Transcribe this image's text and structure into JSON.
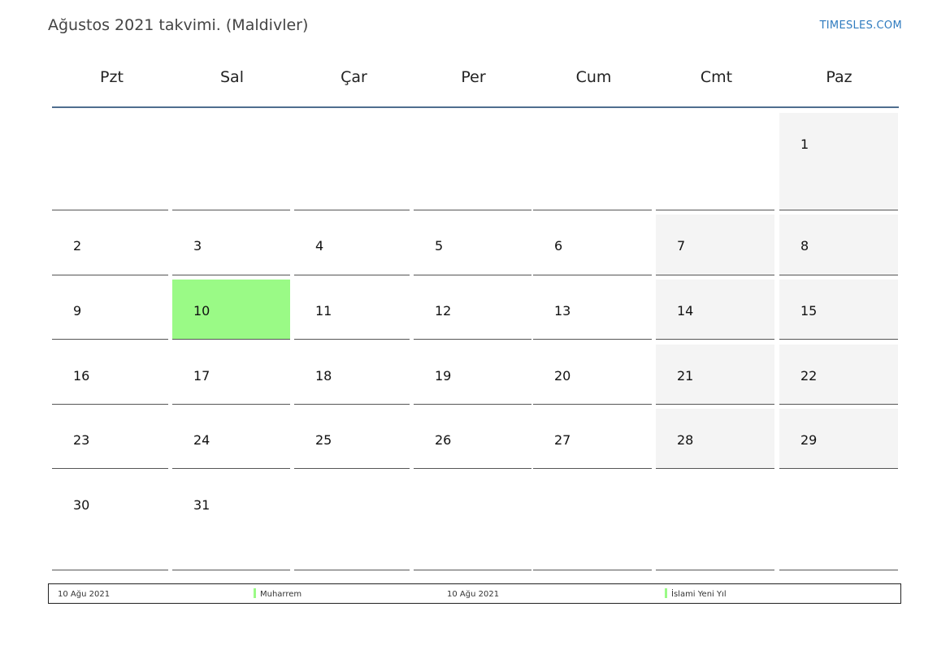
{
  "header": {
    "title": "Ağustos 2021 takvimi. (Maldivler)",
    "brand": "TIMESLES.COM"
  },
  "weekdays": [
    "Pzt",
    "Sal",
    "Çar",
    "Per",
    "Cum",
    "Cmt",
    "Paz"
  ],
  "weeks": [
    [
      "",
      "",
      "",
      "",
      "",
      "",
      "1"
    ],
    [
      "2",
      "3",
      "4",
      "5",
      "6",
      "7",
      "8"
    ],
    [
      "9",
      "10",
      "11",
      "12",
      "13",
      "14",
      "15"
    ],
    [
      "16",
      "17",
      "18",
      "19",
      "20",
      "21",
      "22"
    ],
    [
      "23",
      "24",
      "25",
      "26",
      "27",
      "28",
      "29"
    ],
    [
      "30",
      "31",
      "",
      "",
      "",
      "",
      ""
    ]
  ],
  "highlighted_days": [
    "10"
  ],
  "colors": {
    "holiday": "#9afa86",
    "weekend": "#f4f4f4",
    "header_rule": "#4f6e8f",
    "brand": "#2f7bbf"
  },
  "legend": [
    {
      "date": "10 Ağu 2021",
      "name": "Muharrem"
    },
    {
      "date": "10 Ağu 2021",
      "name": "İslami Yeni Yıl"
    }
  ]
}
